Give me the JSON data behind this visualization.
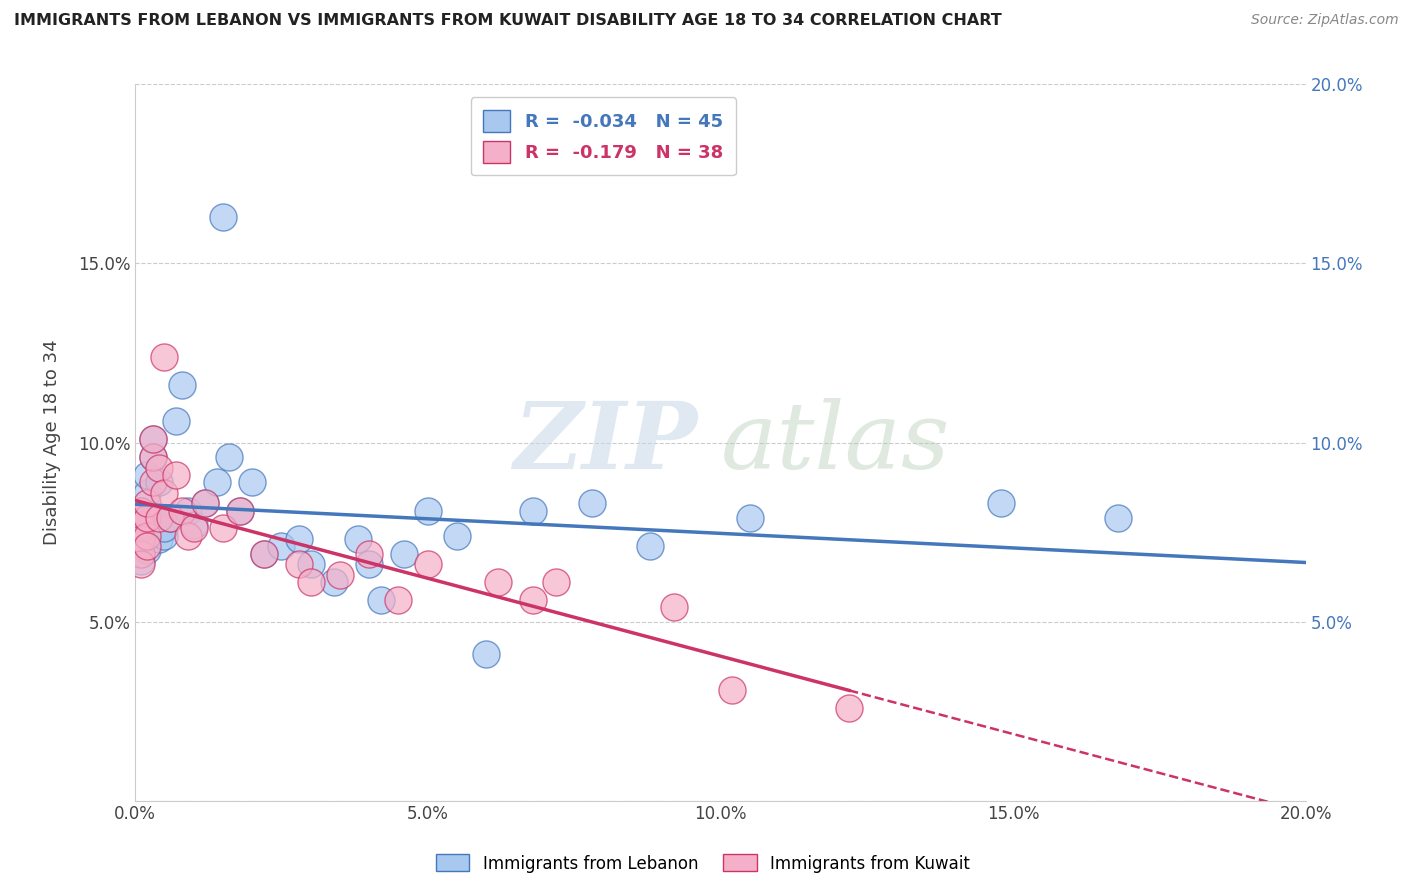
{
  "title": "IMMIGRANTS FROM LEBANON VS IMMIGRANTS FROM KUWAIT DISABILITY AGE 18 TO 34 CORRELATION CHART",
  "source": "Source: ZipAtlas.com",
  "xlabel": "",
  "ylabel": "Disability Age 18 to 34",
  "xlim": [
    0.0,
    0.2
  ],
  "ylim": [
    0.0,
    0.2
  ],
  "xtick_labels": [
    "0.0%",
    "",
    "5.0%",
    "",
    "10.0%",
    "",
    "15.0%",
    "",
    "20.0%"
  ],
  "xtick_vals": [
    0.0,
    0.025,
    0.05,
    0.075,
    0.1,
    0.125,
    0.15,
    0.175,
    0.2
  ],
  "right_ytick_labels": [
    "",
    "5.0%",
    "10.0%",
    "15.0%",
    "20.0%"
  ],
  "right_ytick_vals": [
    0.0,
    0.05,
    0.1,
    0.15,
    0.2
  ],
  "left_ytick_labels": [
    "",
    "5.0%",
    "10.0%",
    "15.0%",
    ""
  ],
  "left_ytick_vals": [
    0.0,
    0.05,
    0.1,
    0.15,
    0.2
  ],
  "blue_R": -0.034,
  "blue_N": 45,
  "pink_R": -0.179,
  "pink_N": 38,
  "blue_color": "#a8c8f0",
  "pink_color": "#f4b0c8",
  "blue_line_color": "#4477bb",
  "pink_line_color": "#cc3366",
  "blue_x": [
    0.001,
    0.001,
    0.001,
    0.001,
    0.001,
    0.002,
    0.002,
    0.002,
    0.002,
    0.003,
    0.003,
    0.003,
    0.004,
    0.004,
    0.005,
    0.005,
    0.006,
    0.007,
    0.008,
    0.009,
    0.01,
    0.012,
    0.014,
    0.015,
    0.016,
    0.018,
    0.02,
    0.022,
    0.025,
    0.028,
    0.03,
    0.034,
    0.038,
    0.04,
    0.042,
    0.046,
    0.05,
    0.055,
    0.06,
    0.068,
    0.078,
    0.088,
    0.105,
    0.148,
    0.168
  ],
  "blue_y": [
    0.075,
    0.079,
    0.081,
    0.072,
    0.067,
    0.074,
    0.07,
    0.086,
    0.091,
    0.079,
    0.096,
    0.101,
    0.089,
    0.073,
    0.074,
    0.076,
    0.079,
    0.106,
    0.116,
    0.081,
    0.077,
    0.083,
    0.089,
    0.163,
    0.096,
    0.081,
    0.089,
    0.069,
    0.071,
    0.073,
    0.066,
    0.061,
    0.073,
    0.066,
    0.056,
    0.069,
    0.081,
    0.074,
    0.041,
    0.081,
    0.083,
    0.071,
    0.079,
    0.083,
    0.079
  ],
  "pink_x": [
    0.001,
    0.001,
    0.001,
    0.001,
    0.001,
    0.001,
    0.002,
    0.002,
    0.002,
    0.002,
    0.003,
    0.003,
    0.003,
    0.004,
    0.004,
    0.005,
    0.005,
    0.006,
    0.007,
    0.008,
    0.009,
    0.01,
    0.012,
    0.015,
    0.018,
    0.022,
    0.028,
    0.03,
    0.035,
    0.04,
    0.045,
    0.05,
    0.062,
    0.068,
    0.072,
    0.092,
    0.102,
    0.122
  ],
  "pink_y": [
    0.076,
    0.081,
    0.077,
    0.073,
    0.069,
    0.066,
    0.074,
    0.079,
    0.083,
    0.071,
    0.089,
    0.096,
    0.101,
    0.093,
    0.079,
    0.124,
    0.086,
    0.079,
    0.091,
    0.081,
    0.074,
    0.076,
    0.083,
    0.076,
    0.081,
    0.069,
    0.066,
    0.061,
    0.063,
    0.069,
    0.056,
    0.066,
    0.061,
    0.056,
    0.061,
    0.054,
    0.031,
    0.026
  ],
  "watermark_zip": "ZIP",
  "watermark_atlas": "atlas",
  "legend_label_blue": "Immigrants from Lebanon",
  "legend_label_pink": "Immigrants from Kuwait",
  "background_color": "#ffffff",
  "grid_color": "#cccccc"
}
